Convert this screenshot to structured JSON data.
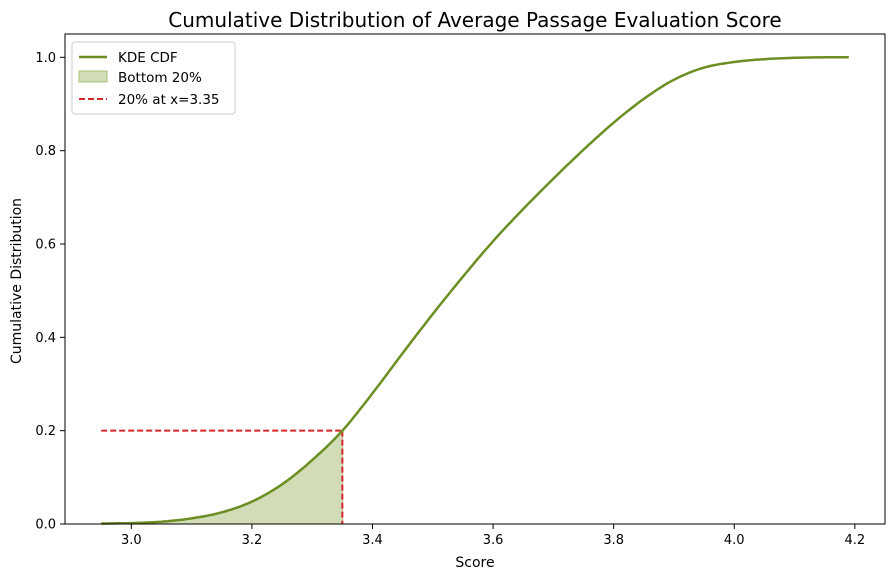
{
  "chart_data": {
    "type": "line",
    "title": "Cumulative Distribution of Average Passage Evaluation Score",
    "xlabel": "Score",
    "ylabel": "Cumulative Distribution",
    "xlim": [
      2.89,
      4.25
    ],
    "ylim": [
      0,
      1.05
    ],
    "xticks": [
      "3.0",
      "3.2",
      "3.4",
      "3.6",
      "3.8",
      "4.0",
      "4.2"
    ],
    "yticks": [
      "0.0",
      "0.2",
      "0.4",
      "0.6",
      "0.8",
      "1.0"
    ],
    "grid": false,
    "legend_position": "top-left",
    "colors": {
      "line": "#6b8e23",
      "fill": "#d2ddb8",
      "fill_edge": "#a9bf7a",
      "threshold": "#d62728"
    },
    "series": [
      {
        "name": "KDE CDF",
        "x": [
          2.95,
          3.0,
          3.05,
          3.1,
          3.15,
          3.2,
          3.25,
          3.3,
          3.35,
          3.4,
          3.45,
          3.5,
          3.55,
          3.6,
          3.65,
          3.7,
          3.75,
          3.8,
          3.85,
          3.9,
          3.95,
          4.0,
          4.05,
          4.1,
          4.15,
          4.19
        ],
        "y": [
          0.001,
          0.002,
          0.005,
          0.012,
          0.025,
          0.048,
          0.085,
          0.137,
          0.2,
          0.28,
          0.366,
          0.45,
          0.53,
          0.606,
          0.675,
          0.74,
          0.802,
          0.86,
          0.911,
          0.952,
          0.978,
          0.99,
          0.996,
          0.999,
          1.0,
          1.0
        ]
      }
    ],
    "shaded_region": {
      "name": "Bottom 20%",
      "x_max": 3.35
    },
    "threshold": {
      "name": "20% at x=3.35",
      "x": 3.35,
      "y": 0.2
    }
  }
}
